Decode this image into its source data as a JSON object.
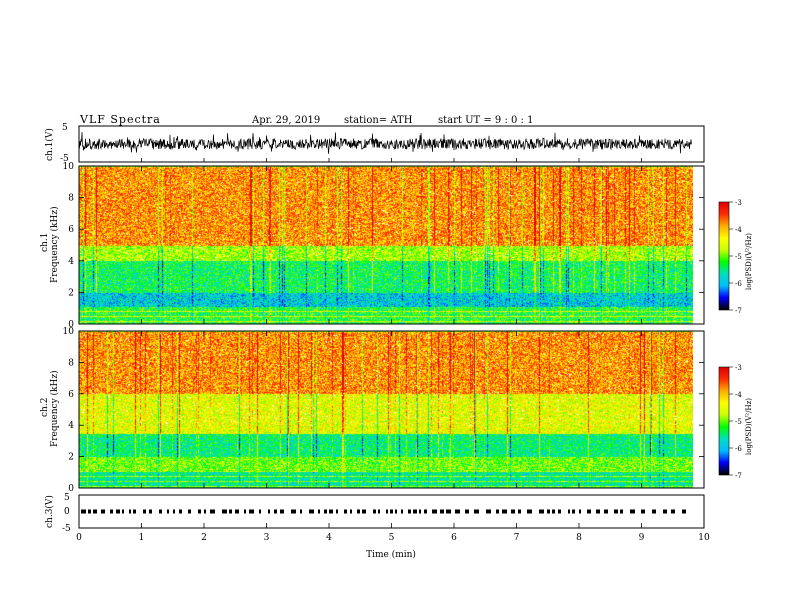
{
  "header": {
    "title": "VLF  Spectra",
    "date": "Apr. 29, 2019",
    "station": "station= ATH",
    "start_ut": "start  UT  =    9  : 0  : 1"
  },
  "chart_data": [
    {
      "type": "line",
      "name": "ch1-waveform",
      "ylabel": "ch.1(V)",
      "ylim": [
        -5,
        5
      ],
      "yticks": [
        "5",
        "-5"
      ],
      "xlim": [
        0,
        10
      ],
      "x_end": 9.8,
      "baseline_v": 0,
      "amplitude_v": [
        -1.5,
        1.5
      ],
      "spike_amplitude_v": [
        -3,
        3.5
      ]
    },
    {
      "type": "heatmap",
      "name": "ch1-spectrogram",
      "panel_label": "ch.1",
      "ylabel": "Frequency  (kHz)",
      "ylim": [
        0,
        10
      ],
      "yticks": [
        "0",
        "2",
        "4",
        "6",
        "8",
        "10"
      ],
      "xlim": [
        0,
        10
      ],
      "x_end": 9.8,
      "colorbar": {
        "label": "log(PSD)(V²/Hz)",
        "range": [
          -7,
          -3
        ],
        "ticks": [
          "-3",
          "-4",
          "-5",
          "-6",
          "-7"
        ]
      },
      "bands_khz_log_psd": [
        {
          "from": 5.0,
          "to": 10.0,
          "level": -3.8
        },
        {
          "from": 4.0,
          "to": 5.0,
          "level": -4.8
        },
        {
          "from": 2.0,
          "to": 4.0,
          "level": -5.4
        },
        {
          "from": 1.1,
          "to": 2.0,
          "level": -5.9
        },
        {
          "from": 0.0,
          "to": 1.1,
          "level": -5.3
        }
      ]
    },
    {
      "type": "heatmap",
      "name": "ch2-spectrogram",
      "panel_label": "ch.2",
      "ylabel": "Frequency  (kHz)",
      "ylim": [
        0,
        10
      ],
      "yticks": [
        "0",
        "2",
        "4",
        "6",
        "8",
        "10"
      ],
      "xlim": [
        0,
        10
      ],
      "x_end": 9.8,
      "colorbar": {
        "label": "log(PSD)(V²/Hz)",
        "range": [
          -7,
          -3
        ],
        "ticks": [
          "-3",
          "-4",
          "-5",
          "-6",
          "-7"
        ]
      },
      "bands_khz_log_psd": [
        {
          "from": 6.0,
          "to": 10.0,
          "level": -3.8
        },
        {
          "from": 3.5,
          "to": 6.0,
          "level": -4.5
        },
        {
          "from": 2.0,
          "to": 3.5,
          "level": -5.5
        },
        {
          "from": 1.1,
          "to": 2.0,
          "level": -5.0
        },
        {
          "from": 0.0,
          "to": 1.1,
          "level": -5.6
        }
      ]
    },
    {
      "type": "line",
      "name": "ch3-timecode",
      "ylabel": "ch.3(V)",
      "ylim": [
        -5,
        5
      ],
      "yticks": [
        "5",
        "0",
        "-5"
      ],
      "xlim": [
        0,
        10
      ],
      "x_end": 9.8,
      "level_v": 0,
      "xlabel": "Time  (min)",
      "xticks": [
        "0",
        "1",
        "2",
        "3",
        "4",
        "5",
        "6",
        "7",
        "8",
        "9",
        "10"
      ]
    }
  ],
  "colors": {
    "frame": "#000000",
    "waveform": "#000000",
    "colormap": [
      "#000000",
      "#0000ff",
      "#00bfff",
      "#00e0c0",
      "#00ff00",
      "#c8ff00",
      "#ffff00",
      "#ffb000",
      "#ff3000",
      "#e00000",
      "#ffffff"
    ]
  }
}
